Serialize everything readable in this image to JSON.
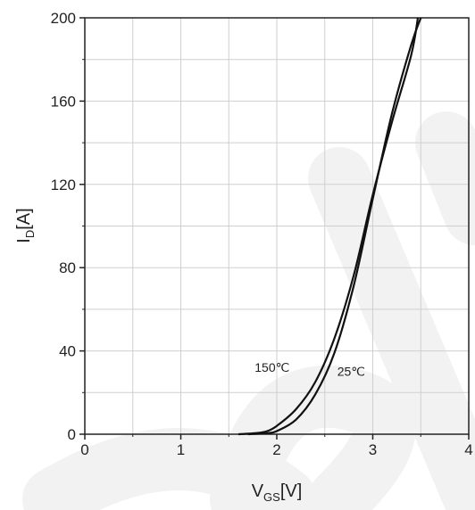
{
  "chart_data": {
    "type": "line",
    "xlabel_main": "V",
    "xlabel_sub": "GS",
    "xlabel_unit": "[V]",
    "ylabel_main": "I",
    "ylabel_sub": "D",
    "ylabel_unit": "[A]",
    "xlim": [
      0,
      4
    ],
    "ylim": [
      0,
      200
    ],
    "xticks": [
      0,
      1,
      2,
      3,
      4
    ],
    "yticks": [
      0,
      40,
      80,
      120,
      160,
      200
    ],
    "xtick_labels": [
      "0",
      "1",
      "2",
      "3",
      "4"
    ],
    "ytick_labels": [
      "0",
      "40",
      "80",
      "120",
      "160",
      "200"
    ],
    "grid": true,
    "series": [
      {
        "name": "150℃",
        "points": [
          [
            1.6,
            0
          ],
          [
            1.8,
            0.6
          ],
          [
            1.9,
            1.5
          ],
          [
            2.0,
            4
          ],
          [
            2.2,
            12
          ],
          [
            2.4,
            25
          ],
          [
            2.6,
            46
          ],
          [
            2.8,
            76
          ],
          [
            3.0,
            115
          ],
          [
            3.2,
            150
          ],
          [
            3.4,
            182
          ],
          [
            3.47,
            200
          ]
        ]
      },
      {
        "name": "25℃",
        "points": [
          [
            1.7,
            0
          ],
          [
            1.9,
            0.5
          ],
          [
            2.0,
            1.5
          ],
          [
            2.2,
            7
          ],
          [
            2.4,
            19
          ],
          [
            2.6,
            39
          ],
          [
            2.8,
            71
          ],
          [
            3.0,
            113
          ],
          [
            3.2,
            154
          ],
          [
            3.4,
            187
          ],
          [
            3.5,
            200
          ]
        ]
      }
    ],
    "annotations": [
      {
        "text": "150℃",
        "x": 1.77,
        "y": 30
      },
      {
        "text": "25℃",
        "x": 2.63,
        "y": 28
      }
    ]
  }
}
